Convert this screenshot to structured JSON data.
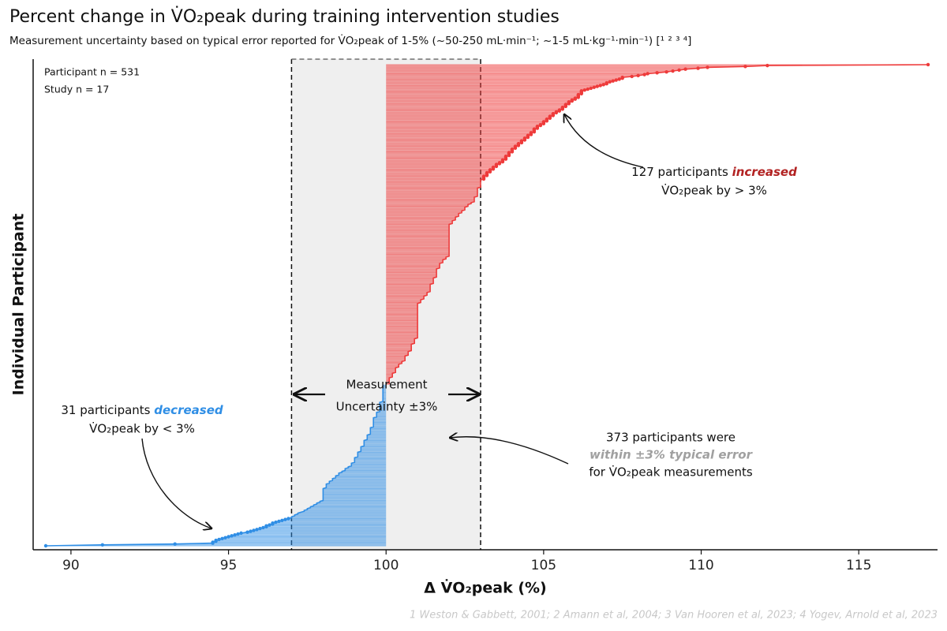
{
  "chart_data": {
    "type": "waterfall-dots",
    "title": "Percent change in V̇O₂peak during training intervention studies",
    "subtitle": "Measurement uncertainty based on typical error reported for V̇O₂peak of 1-5% (~50-250 mL·min⁻¹; ~1-5 mL·kg⁻¹·min⁻¹) [¹ ² ³ ⁴]",
    "x_label": "Δ V̇O₂peak (%)",
    "y_label": "Individual Participant",
    "info": [
      "Participant n = 531",
      "Study n = 17"
    ],
    "footnote": "1 Weston & Gabbett, 2001; 2 Amann et al, 2004; 3 Van Hooren et al, 2023; 4 Yogev, Arnold et al, 2023",
    "annotation_increased": {
      "text": "127 participants ",
      "emphasis": "increased",
      "line2": "V̇O₂peak by > 3%"
    },
    "annotation_decreased": {
      "text": "31 participants ",
      "emphasis": "decreased",
      "line2": "V̇O₂peak by < 3%"
    },
    "annotation_within": {
      "line1": "373 participants were",
      "emphasis": "within ±3% typical error",
      "line3": "for V̇O₂peak measurements"
    },
    "band_label": [
      "Measurement",
      "Uncertainty ±3%"
    ],
    "baseline": 100,
    "band": [
      97,
      103
    ],
    "color_below": "#2f8ee5",
    "color_above": "#ee3b3b",
    "xlim": [
      88.8,
      117.5
    ],
    "xticks": [
      90,
      95,
      100,
      105,
      110,
      115
    ],
    "values": [
      89.2,
      91.0,
      93.3,
      94.5,
      94.5,
      94.6,
      94.6,
      94.7,
      94.8,
      94.9,
      95.0,
      95.1,
      95.2,
      95.3,
      95.4,
      95.6,
      95.7,
      95.8,
      95.9,
      96.0,
      96.1,
      96.2,
      96.2,
      96.3,
      96.4,
      96.4,
      96.5,
      96.6,
      96.7,
      96.8,
      96.9,
      97.0,
      97.0,
      97.1,
      97.1,
      97.2,
      97.2,
      97.3,
      97.4,
      97.4,
      97.5,
      97.5,
      97.6,
      97.6,
      97.7,
      97.7,
      97.8,
      97.8,
      97.9,
      97.9,
      98.0,
      98.0,
      98.0,
      98.0,
      98.0,
      98.0,
      98.0,
      98.0,
      98.0,
      98.0,
      98.0,
      98.0,
      98.0,
      98.0,
      98.1,
      98.1,
      98.1,
      98.1,
      98.1,
      98.2,
      98.2,
      98.2,
      98.3,
      98.3,
      98.3,
      98.4,
      98.4,
      98.4,
      98.5,
      98.5,
      98.5,
      98.6,
      98.6,
      98.7,
      98.7,
      98.7,
      98.8,
      98.8,
      98.9,
      98.9,
      98.9,
      98.9,
      99.0,
      99.0,
      99.0,
      99.0,
      99.0,
      99.0,
      99.1,
      99.1,
      99.1,
      99.1,
      99.1,
      99.1,
      99.2,
      99.2,
      99.2,
      99.2,
      99.2,
      99.2,
      99.3,
      99.3,
      99.3,
      99.3,
      99.3,
      99.3,
      99.3,
      99.4,
      99.4,
      99.4,
      99.4,
      99.4,
      99.4,
      99.5,
      99.5,
      99.5,
      99.5,
      99.5,
      99.5,
      99.5,
      99.5,
      99.6,
      99.6,
      99.6,
      99.6,
      99.6,
      99.6,
      99.6,
      99.6,
      99.6,
      99.6,
      99.6,
      99.7,
      99.7,
      99.7,
      99.7,
      99.7,
      99.7,
      99.8,
      99.8,
      99.8,
      99.8,
      99.8,
      99.8,
      99.8,
      99.8,
      99.8,
      99.8,
      99.8,
      99.9,
      99.9,
      99.9,
      99.9,
      99.9,
      99.9,
      99.9,
      99.9,
      99.9,
      99.9,
      99.9,
      99.9,
      99.9,
      99.9,
      99.9,
      99.9,
      99.9,
      99.9,
      99.9,
      100.1,
      100.1,
      100.1,
      100.1,
      100.1,
      100.1,
      100.1,
      100.1,
      100.2,
      100.2,
      100.2,
      100.2,
      100.2,
      100.3,
      100.3,
      100.3,
      100.3,
      100.3,
      100.3,
      100.4,
      100.4,
      100.4,
      100.4,
      100.5,
      100.5,
      100.5,
      100.6,
      100.6,
      100.6,
      100.6,
      100.6,
      100.6,
      100.7,
      100.7,
      100.7,
      100.7,
      100.7,
      100.8,
      100.8,
      100.8,
      100.8,
      100.8,
      100.8,
      100.8,
      100.8,
      100.9,
      100.9,
      100.9,
      100.9,
      100.9,
      100.9,
      101.0,
      101.0,
      101.0,
      101.0,
      101.0,
      101.0,
      101.0,
      101.0,
      101.0,
      101.0,
      101.0,
      101.0,
      101.0,
      101.0,
      101.0,
      101.0,
      101.0,
      101.0,
      101.0,
      101.0,
      101.0,
      101.0,
      101.0,
      101.0,
      101.0,
      101.0,
      101.0,
      101.0,
      101.0,
      101.0,
      101.0,
      101.0,
      101.0,
      101.0,
      101.0,
      101.0,
      101.0,
      101.0,
      101.0,
      101.1,
      101.1,
      101.1,
      101.1,
      101.2,
      101.2,
      101.2,
      101.2,
      101.3,
      101.3,
      101.3,
      101.3,
      101.4,
      101.4,
      101.4,
      101.4,
      101.4,
      101.4,
      101.4,
      101.4,
      101.4,
      101.5,
      101.5,
      101.5,
      101.5,
      101.5,
      101.5,
      101.5,
      101.6,
      101.6,
      101.6,
      101.6,
      101.6,
      101.6,
      101.6,
      101.6,
      101.6,
      101.6,
      101.7,
      101.7,
      101.7,
      101.7,
      101.7,
      101.7,
      101.8,
      101.8,
      101.8,
      101.8,
      101.9,
      101.9,
      101.9,
      102.0,
      102.0,
      102.0,
      102.0,
      102.0,
      102.0,
      102.0,
      102.0,
      102.0,
      102.0,
      102.0,
      102.0,
      102.0,
      102.0,
      102.0,
      102.0,
      102.0,
      102.0,
      102.0,
      102.0,
      102.0,
      102.0,
      102.0,
      102.0,
      102.0,
      102.0,
      102.0,
      102.0,
      102.0,
      102.0,
      102.0,
      102.0,
      102.0,
      102.0,
      102.0,
      102.0,
      102.1,
      102.1,
      102.1,
      102.1,
      102.2,
      102.2,
      102.2,
      102.2,
      102.3,
      102.3,
      102.3,
      102.3,
      102.4,
      102.4,
      102.4,
      102.5,
      102.5,
      102.5,
      102.5,
      102.6,
      102.6,
      102.6,
      102.7,
      102.7,
      102.8,
      102.8,
      102.8,
      102.8,
      102.8,
      102.8,
      102.9,
      102.9,
      102.9,
      102.9,
      102.9,
      102.9,
      102.9,
      102.9,
      102.9,
      102.9,
      103.0,
      103.0,
      103.0,
      103.0,
      103.0,
      103.0,
      103.0,
      103.0,
      103.0,
      103.1,
      103.1,
      103.1,
      103.1,
      103.2,
      103.2,
      103.2,
      103.2,
      103.3,
      103.3,
      103.3,
      103.4,
      103.4,
      103.4,
      103.5,
      103.5,
      103.5,
      103.6,
      103.6,
      103.7,
      103.7,
      103.7,
      103.8,
      103.8,
      103.8,
      103.8,
      103.9,
      103.9,
      103.9,
      103.9,
      104.0,
      104.0,
      104.0,
      104.0,
      104.1,
      104.1,
      104.1,
      104.2,
      104.2,
      104.2,
      104.3,
      104.3,
      104.3,
      104.4,
      104.4,
      104.4,
      104.5,
      104.5,
      104.5,
      104.6,
      104.6,
      104.6,
      104.7,
      104.7,
      104.7,
      104.7,
      104.8,
      104.8,
      104.8,
      104.9,
      104.9,
      105.0,
      105.0,
      105.0,
      105.1,
      105.1,
      105.1,
      105.2,
      105.2,
      105.2,
      105.3,
      105.3,
      105.3,
      105.4,
      105.4,
      105.5,
      105.5,
      105.6,
      105.6,
      105.6,
      105.7,
      105.7,
      105.7,
      105.8,
      105.8,
      105.8,
      105.9,
      105.9,
      106.0,
      106.0,
      106.1,
      106.1,
      106.1,
      106.1,
      106.2,
      106.2,
      106.2,
      106.2,
      106.3,
      106.4,
      106.5,
      106.6,
      106.7,
      106.8,
      106.9,
      107.0,
      107.0,
      107.1,
      107.2,
      107.3,
      107.4,
      107.5,
      107.5,
      107.8,
      108.0,
      108.2,
      108.3,
      108.6,
      108.9,
      109.1,
      109.3,
      109.5,
      109.9,
      110.2,
      111.4,
      112.1,
      117.2
    ]
  }
}
